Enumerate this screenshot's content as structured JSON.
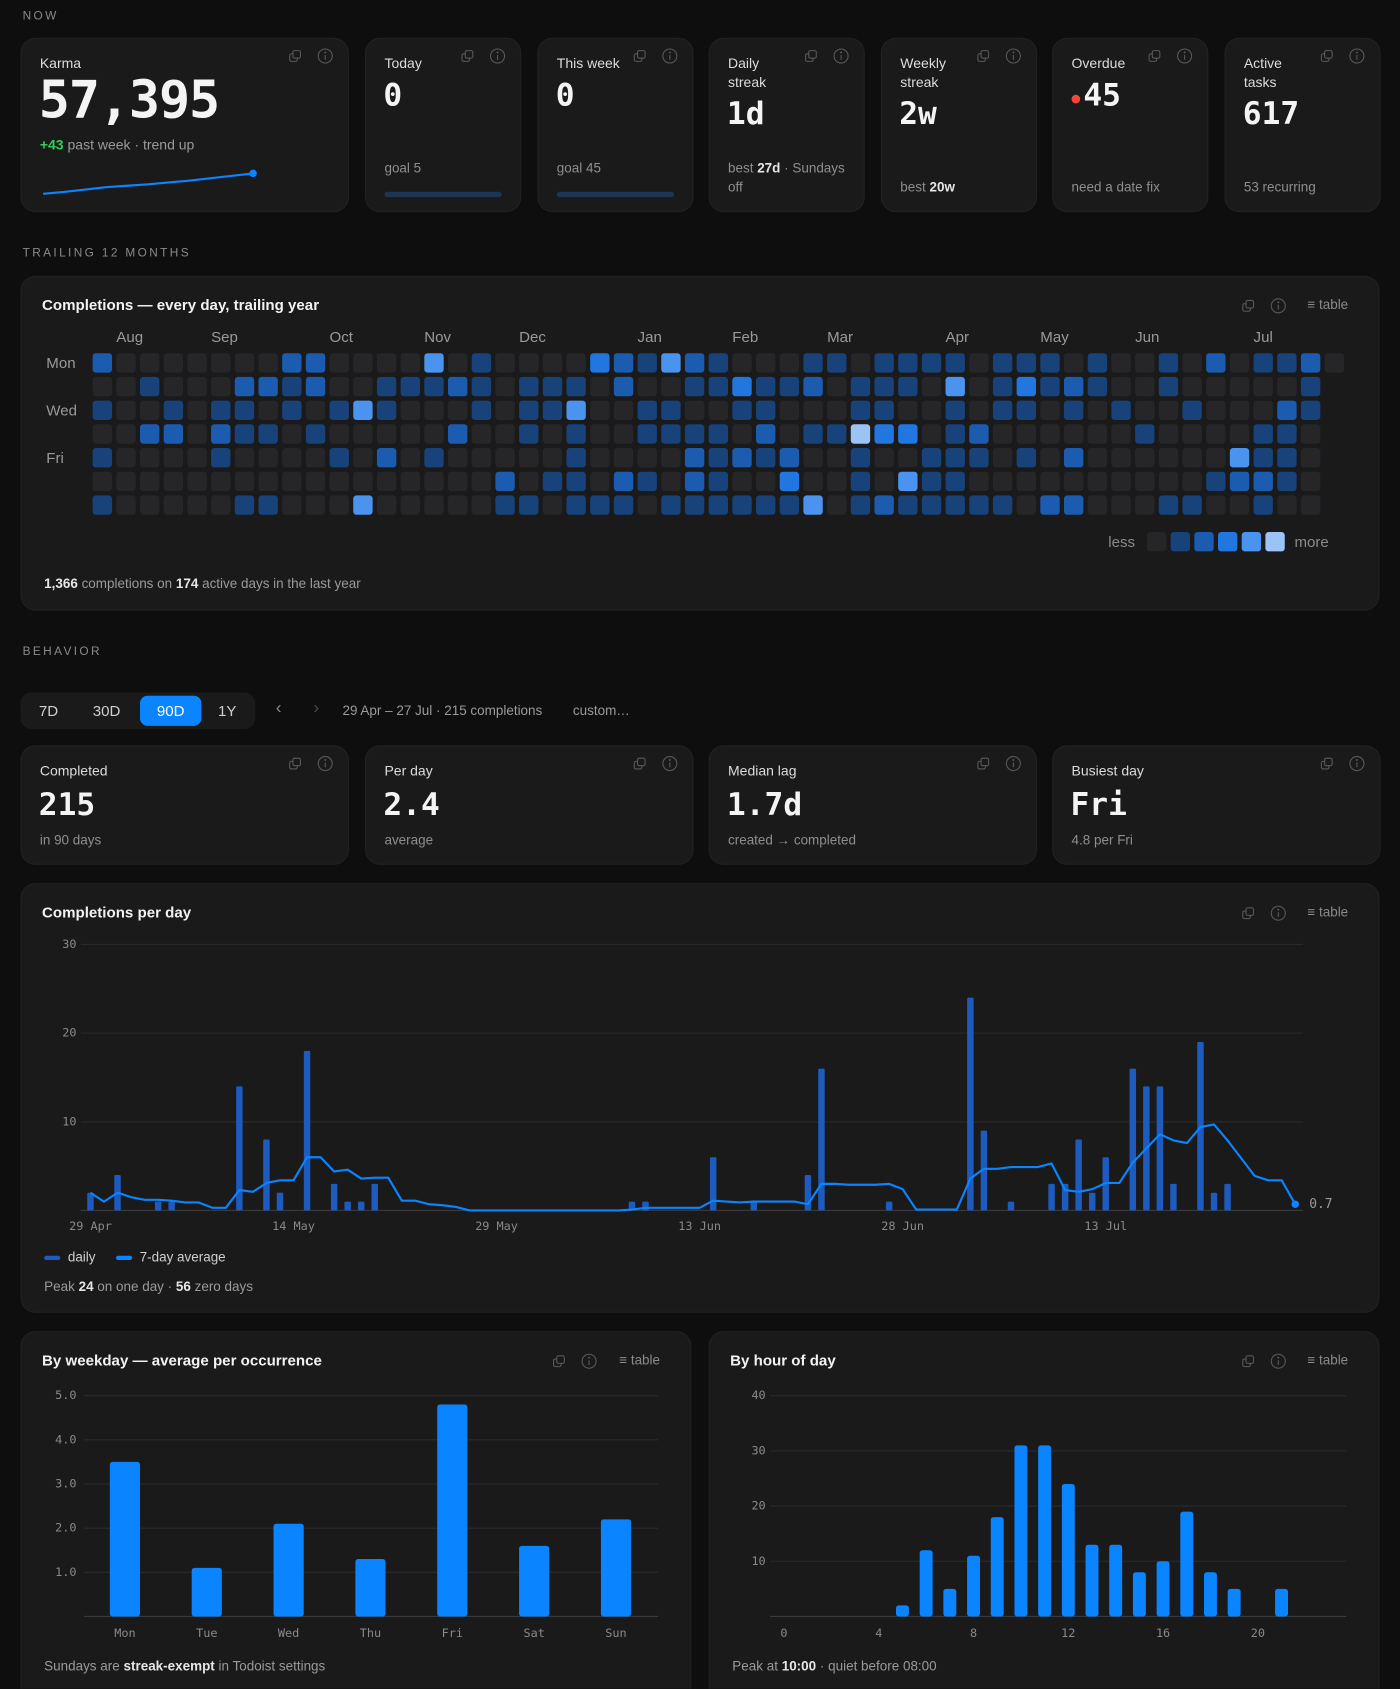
{
  "sections": {
    "now": "NOW",
    "trailing": "TRAILING 12 MONTHS",
    "behavior": "BEHAVIOR"
  },
  "now_cards": [
    {
      "label": "Karma",
      "value": "57,395",
      "note": [
        {
          "text": "+43",
          "tone": "positive"
        },
        {
          "text": " past week · trend up"
        }
      ],
      "sparkline": [
        57352,
        57356,
        57361,
        57366,
        57369,
        57372,
        57376,
        57380,
        57385,
        57390,
        57395
      ],
      "color": "#0a84ff"
    },
    {
      "label": "Today",
      "value": "0",
      "note": [
        {
          "text": "goal 5"
        }
      ],
      "progress": 0
    },
    {
      "label": "This week",
      "value": "0",
      "note": [
        {
          "text": "goal 45"
        }
      ],
      "progress": 0
    },
    {
      "label": "Daily streak",
      "value": "1d",
      "note": [
        {
          "text": "best "
        },
        {
          "text": "27d",
          "tone": "strong"
        },
        {
          "text": " · Sundays off"
        }
      ]
    },
    {
      "label": "Weekly streak",
      "value": "2w",
      "note": [
        {
          "text": "best "
        },
        {
          "text": "20w",
          "tone": "strong"
        }
      ]
    },
    {
      "label": "Overdue",
      "value": "45",
      "alert": true,
      "note": [
        {
          "text": "need a date fix"
        }
      ]
    },
    {
      "label": "Active tasks",
      "value": "617",
      "note": [
        {
          "text": "53 recurring"
        }
      ]
    }
  ],
  "heatmap": {
    "title": "Completions — every day, trailing year",
    "table_button": "≡ table",
    "weeks": [
      null,
      "Aug",
      null,
      null,
      null,
      "Sep",
      null,
      null,
      null,
      null,
      "Oct",
      null,
      null,
      null,
      "Nov",
      null,
      null,
      null,
      "Dec",
      null,
      null,
      null,
      null,
      "Jan",
      null,
      null,
      null,
      "Feb",
      null,
      null,
      null,
      "Mar",
      null,
      null,
      null,
      null,
      "Apr",
      null,
      null,
      null,
      "May",
      null,
      null,
      null,
      "Jun",
      null,
      null,
      null,
      null,
      "Jul",
      null,
      null,
      null
    ],
    "days": [
      "Mon",
      null,
      "Wed",
      null,
      "Fri",
      null,
      null
    ],
    "levels": [
      [
        2,
        0,
        0,
        0,
        0,
        0,
        0,
        0,
        2,
        2,
        0,
        0,
        0,
        0,
        4,
        0,
        1,
        0,
        0,
        0,
        0,
        3,
        2,
        1,
        4,
        2,
        1,
        0,
        0,
        0,
        1,
        1,
        0,
        1,
        1,
        1,
        1,
        0,
        1,
        1,
        1,
        0,
        1,
        0,
        0,
        1,
        0,
        2,
        0,
        1,
        1,
        2,
        0
      ],
      [
        0,
        0,
        1,
        0,
        0,
        0,
        2,
        2,
        1,
        2,
        0,
        0,
        1,
        1,
        1,
        2,
        1,
        0,
        1,
        1,
        1,
        0,
        2,
        0,
        0,
        1,
        1,
        3,
        1,
        1,
        2,
        0,
        1,
        1,
        1,
        0,
        4,
        0,
        1,
        3,
        1,
        2,
        1,
        0,
        0,
        1,
        0,
        0,
        0,
        0,
        0,
        1,
        null
      ],
      [
        1,
        0,
        0,
        1,
        0,
        1,
        1,
        0,
        1,
        0,
        1,
        4,
        1,
        0,
        0,
        0,
        1,
        0,
        1,
        1,
        4,
        0,
        0,
        1,
        1,
        0,
        0,
        1,
        1,
        0,
        0,
        0,
        1,
        1,
        0,
        0,
        1,
        0,
        1,
        1,
        0,
        1,
        0,
        1,
        0,
        0,
        1,
        0,
        0,
        0,
        2,
        1,
        null
      ],
      [
        0,
        0,
        2,
        2,
        0,
        2,
        1,
        1,
        0,
        1,
        0,
        0,
        0,
        0,
        0,
        2,
        0,
        0,
        1,
        0,
        1,
        0,
        0,
        1,
        1,
        1,
        1,
        0,
        2,
        0,
        1,
        1,
        5,
        3,
        3,
        0,
        1,
        2,
        0,
        0,
        0,
        0,
        0,
        0,
        1,
        0,
        0,
        0,
        0,
        1,
        1,
        0,
        null
      ],
      [
        1,
        0,
        0,
        0,
        0,
        1,
        0,
        0,
        0,
        0,
        1,
        0,
        2,
        0,
        1,
        0,
        0,
        0,
        0,
        0,
        1,
        0,
        0,
        0,
        0,
        2,
        1,
        2,
        1,
        2,
        0,
        0,
        1,
        0,
        0,
        1,
        1,
        1,
        0,
        1,
        0,
        2,
        0,
        0,
        0,
        0,
        0,
        0,
        4,
        1,
        1,
        0,
        null
      ],
      [
        0,
        0,
        0,
        0,
        0,
        0,
        0,
        0,
        0,
        0,
        0,
        0,
        0,
        0,
        0,
        0,
        0,
        2,
        0,
        1,
        1,
        0,
        2,
        1,
        0,
        2,
        1,
        0,
        0,
        3,
        0,
        0,
        1,
        0,
        4,
        1,
        1,
        0,
        0,
        0,
        0,
        0,
        0,
        0,
        0,
        0,
        0,
        1,
        2,
        2,
        1,
        0,
        null
      ],
      [
        1,
        0,
        0,
        0,
        0,
        0,
        1,
        1,
        0,
        0,
        0,
        4,
        0,
        0,
        0,
        0,
        0,
        1,
        1,
        0,
        1,
        1,
        1,
        0,
        1,
        1,
        1,
        1,
        1,
        1,
        4,
        0,
        1,
        2,
        1,
        1,
        1,
        1,
        1,
        0,
        2,
        2,
        0,
        0,
        0,
        1,
        1,
        0,
        0,
        1,
        0,
        0,
        null
      ]
    ],
    "level_colors": [
      "#262628",
      "#17427a",
      "#1b5cb0",
      "#2176df",
      "#4a93ee",
      "#9cc3f5"
    ],
    "legend": {
      "less": "less",
      "more": "more"
    },
    "footer": [
      {
        "text": "1,366",
        "tone": "strong"
      },
      {
        "text": " completions on "
      },
      {
        "text": "174",
        "tone": "strong"
      },
      {
        "text": " active days in the last year"
      }
    ]
  },
  "range": {
    "options": [
      "7D",
      "30D",
      "90D",
      "1Y"
    ],
    "active": 2,
    "prev": "‹",
    "next": "›",
    "summary": "29 Apr – 27 Jul · 215 completions",
    "custom": "custom…"
  },
  "behavior_cards": [
    {
      "label": "Completed",
      "value": "215",
      "note": [
        {
          "text": "in 90 days"
        }
      ]
    },
    {
      "label": "Per day",
      "value": "2.4",
      "note": [
        {
          "text": "average"
        }
      ]
    },
    {
      "label": "Median lag",
      "value": "1.7d",
      "note": [
        {
          "text": "created → completed"
        }
      ]
    },
    {
      "label": "Busiest day",
      "value": "Fri",
      "note": [
        {
          "text": "4.8 per Fri"
        }
      ]
    }
  ],
  "chart_data": [
    {
      "type": "combo",
      "title": "Completions per day",
      "table_button": "≡ table",
      "categories": [
        "29 Apr",
        null,
        null,
        null,
        null,
        null,
        null,
        null,
        null,
        null,
        null,
        null,
        null,
        null,
        null,
        "14 May",
        null,
        null,
        null,
        null,
        null,
        null,
        null,
        null,
        null,
        null,
        null,
        null,
        null,
        null,
        "29 May",
        null,
        null,
        null,
        null,
        null,
        null,
        null,
        null,
        null,
        null,
        null,
        null,
        null,
        null,
        "13 Jun",
        null,
        null,
        null,
        null,
        null,
        null,
        null,
        null,
        null,
        null,
        null,
        null,
        null,
        null,
        "28 Jun",
        null,
        null,
        null,
        null,
        null,
        null,
        null,
        null,
        null,
        null,
        null,
        null,
        null,
        null,
        "13 Jul",
        null,
        null,
        null,
        null,
        null,
        null,
        null,
        null,
        null,
        null,
        null,
        null,
        null,
        null
      ],
      "series": [
        {
          "name": "daily",
          "type": "bar",
          "color": "#1d5bbf",
          "values": [
            2,
            0,
            4,
            0,
            0,
            1,
            1,
            0,
            0,
            0,
            0,
            14,
            0,
            8,
            2,
            0,
            18,
            0,
            3,
            1,
            1,
            3,
            0,
            0,
            0,
            0,
            0,
            0,
            0,
            0,
            0,
            0,
            0,
            0,
            0,
            0,
            0,
            0,
            0,
            0,
            1,
            1,
            0,
            0,
            0,
            0,
            6,
            0,
            0,
            1,
            0,
            0,
            0,
            4,
            16,
            0,
            0,
            0,
            0,
            1,
            0,
            0,
            0,
            0,
            0,
            24,
            9,
            0,
            1,
            0,
            0,
            3,
            3,
            8,
            2,
            6,
            0,
            16,
            14,
            14,
            3,
            0,
            19,
            2,
            3,
            0,
            0,
            0,
            0,
            0
          ]
        },
        {
          "name": "7-day average",
          "type": "line",
          "color": "#0a84ff",
          "end_label": true,
          "values": [
            2,
            1,
            2,
            1.5,
            1.2,
            1.2,
            1.1,
            0.9,
            0.9,
            0.3,
            0.3,
            2.3,
            2.1,
            3.1,
            3.4,
            3.4,
            6,
            6,
            4.4,
            4.6,
            3.6,
            3.7,
            3.7,
            1.1,
            1.1,
            0.7,
            0.6,
            0.4,
            0,
            0,
            0,
            0,
            0,
            0,
            0,
            0,
            0,
            0,
            0,
            0,
            0.1,
            0.3,
            0.3,
            0.3,
            0.3,
            0.3,
            1.1,
            1,
            0.9,
            1,
            1,
            1,
            1,
            0.7,
            3,
            3,
            2.9,
            2.9,
            2.9,
            3,
            2.4,
            0.1,
            0.1,
            0.1,
            0.1,
            3.6,
            4.7,
            4.7,
            4.9,
            4.9,
            4.9,
            5.3,
            2.3,
            2.1,
            2.4,
            3.1,
            3.1,
            5.4,
            7,
            8.6,
            7.9,
            7.6,
            9.4,
            9.7,
            7.9,
            5.9,
            3.9,
            3.4,
            3.4,
            0.7
          ]
        }
      ],
      "ylim": [
        0,
        30
      ],
      "yticks": [
        10,
        20,
        30
      ],
      "grid": true,
      "footer": [
        {
          "text": "Peak "
        },
        {
          "text": "24",
          "tone": "strong"
        },
        {
          "text": " on one day · "
        },
        {
          "text": "56",
          "tone": "strong"
        },
        {
          "text": " zero days"
        }
      ]
    },
    {
      "type": "bar",
      "title": "By weekday — average per occurrence",
      "table_button": "≡ table",
      "categories": [
        "Mon",
        "Tue",
        "Wed",
        "Thu",
        "Fri",
        "Sat",
        "Sun"
      ],
      "values": [
        3.5,
        1.1,
        2.1,
        1.3,
        4.8,
        1.6,
        2.2
      ],
      "color": "#0a84ff",
      "ylim": [
        0,
        5
      ],
      "yticks": [
        {
          "value": 1,
          "label": "1.0"
        },
        {
          "value": 2,
          "label": "2.0"
        },
        {
          "value": 3,
          "label": "3.0"
        },
        {
          "value": 4,
          "label": "4.0"
        },
        {
          "value": 5,
          "label": "5.0"
        }
      ],
      "grid": true,
      "footer": [
        {
          "text": "Sundays are "
        },
        {
          "text": "streak-exempt",
          "tone": "strong"
        },
        {
          "text": " in Todoist settings"
        }
      ]
    },
    {
      "type": "bar",
      "title": "By hour of day",
      "table_button": "≡ table",
      "x": [
        0,
        1,
        2,
        3,
        4,
        5,
        6,
        7,
        8,
        9,
        10,
        11,
        12,
        13,
        14,
        15,
        16,
        17,
        18,
        19,
        20,
        21,
        22,
        23
      ],
      "values": [
        0,
        0,
        0,
        0,
        0,
        2,
        12,
        5,
        11,
        18,
        31,
        31,
        24,
        13,
        13,
        8,
        10,
        19,
        8,
        5,
        0,
        5,
        0,
        0
      ],
      "color": "#0a84ff",
      "xlim": [
        -1.5,
        23.5
      ],
      "xticks": [
        0,
        4,
        8,
        12,
        16,
        20
      ],
      "ylim": [
        0,
        40
      ],
      "yticks": [
        10,
        20,
        30,
        40
      ],
      "grid": true,
      "footer": [
        {
          "text": "Peak at "
        },
        {
          "text": "10:00",
          "tone": "strong"
        },
        {
          "text": " · quiet before 08:00"
        }
      ]
    }
  ]
}
